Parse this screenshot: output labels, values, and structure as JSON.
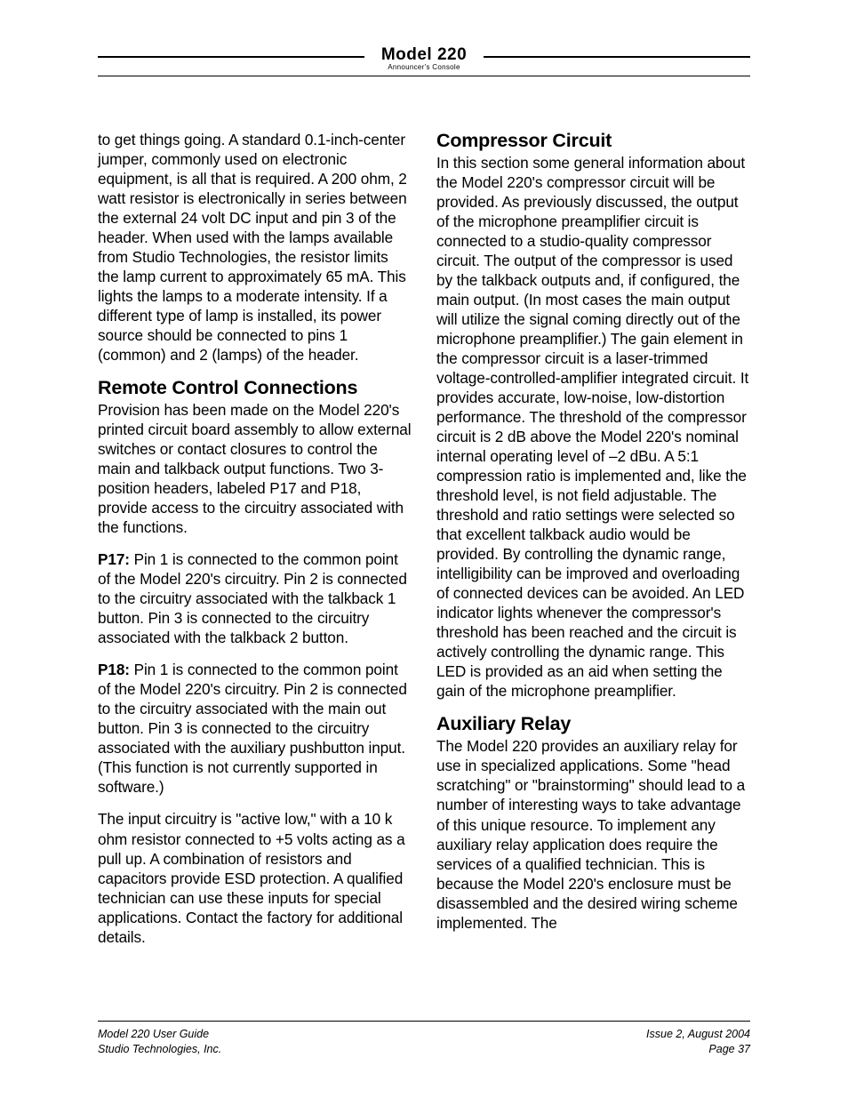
{
  "header": {
    "title": "Model 220",
    "subtitle": "Announcer's Console"
  },
  "col_left": {
    "p0": "to get things going. A standard 0.1-inch-center jumper, commonly used on electronic equipment, is all that is required. A 200 ohm, 2 watt resistor is electronically in series between the external 24 volt DC input and pin 3 of the header. When used with the lamps available from Studio Technologies, the resistor limits the lamp current to approximately 65 mA. This lights the lamps to a moderate intensity. If a different type of lamp is installed, its power source should be connected to pins 1 (common) and 2 (lamps) of the header.",
    "h1": "Remote Control Connections",
    "p1": "Provision has been made on the Model 220's printed circuit board assembly to allow external switches or contact closures to control the main and talkback output functions. Two 3-position headers, labeled P17 and P18, provide access to the circuitry associated with the functions.",
    "p2_label": "P17:",
    "p2": " Pin 1 is connected to the common point of the Model 220's circuitry. Pin 2 is connected to the circuitry associated with the talkback 1 button. Pin 3 is connected to the circuitry associated with the talkback 2 button.",
    "p3_label": "P18:",
    "p3": " Pin 1 is connected to the common point of the Model 220's circuitry. Pin 2 is connected to the circuitry associated with the main out button. Pin 3 is connected to the circuitry associated with the auxiliary pushbutton input. (This function is not currently supported in software.)",
    "p4": "The input circuitry is \"active low,\" with a 10 k ohm resistor connected to +5 volts acting as a pull up. A combination of resistors and capacitors provide ESD protection. A qualified technician can use these inputs for special applications. Contact the factory for additional details."
  },
  "col_right": {
    "h1": "Compressor Circuit",
    "p1": "In this section some general information about the Model 220's compressor circuit will be provided. As previously discussed, the output of the microphone preamplifier circuit is connected to a studio-quality compressor circuit. The output of the compressor is used by the talkback outputs and, if configured, the main output. (In most cases the main output will utilize the signal coming directly out of the microphone preamplifier.) The gain element in the compressor circuit is a laser-trimmed voltage-controlled-amplifier integrated circuit. It provides accurate, low-noise, low-distortion performance. The threshold of the compressor circuit is 2 dB above the Model 220's nominal internal operating level of –2 dBu. A 5:1 compression ratio is implemented and, like the threshold level, is not field adjustable. The threshold and ratio settings were selected so that excellent talkback audio would be provided. By controlling the dynamic range, intelligibility can be improved and overloading of connected devices can be avoided. An LED indicator lights whenever the compressor's threshold has been reached and the circuit is actively controlling the dynamic range. This LED is provided as an aid when setting the gain of the microphone preamplifier.",
    "h2": "Auxiliary Relay",
    "p2": "The Model 220 provides an auxiliary relay for use in specialized applications. Some \"head scratching\" or \"brainstorming\" should lead to a number of interesting ways to take advantage of this unique resource. To implement any auxiliary relay application does require the services of a qualified technician. This is because the Model 220's enclosure must be disassembled and the desired wiring scheme implemented. The"
  },
  "footer": {
    "left1": "Model 220 User Guide",
    "left2": "Studio Technologies, Inc.",
    "right1": "Issue 2, August 2004",
    "right2": "Page 37"
  }
}
